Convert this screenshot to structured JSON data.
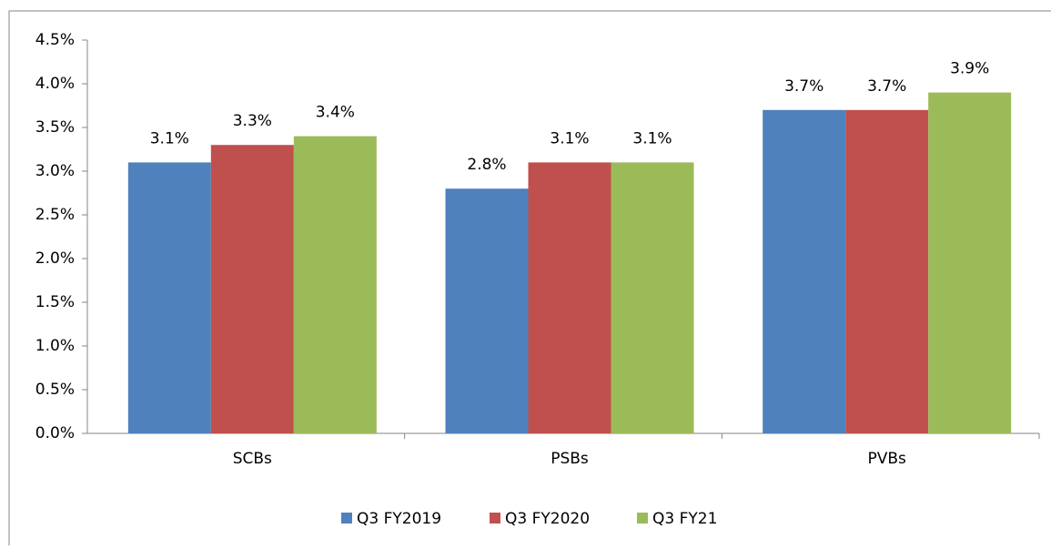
{
  "chart_data": {
    "type": "bar",
    "categories": [
      "SCBs",
      "PSBs",
      "PVBs"
    ],
    "series": [
      {
        "name": "Q3 FY2019",
        "color": "#4f81bd",
        "values": [
          3.1,
          2.8,
          3.7
        ],
        "value_labels": [
          "3.1%",
          "2.8%",
          "3.7%"
        ]
      },
      {
        "name": "Q3 FY2020",
        "color": "#c0504d",
        "values": [
          3.3,
          3.1,
          3.7
        ],
        "value_labels": [
          "3.3%",
          "3.1%",
          "3.7%"
        ]
      },
      {
        "name": "Q3 FY21",
        "color": "#9bbb59",
        "values": [
          3.4,
          3.1,
          3.9
        ],
        "value_labels": [
          "3.4%",
          "3.1%",
          "3.9%"
        ]
      }
    ],
    "ylim": [
      0,
      4.5
    ],
    "yticks": [
      {
        "value": 0,
        "label": "0.0%"
      },
      {
        "value": 0.5,
        "label": "0.5%"
      },
      {
        "value": 1,
        "label": "1.0%"
      },
      {
        "value": 1.5,
        "label": "1.5%"
      },
      {
        "value": 2,
        "label": "2.0%"
      },
      {
        "value": 2.5,
        "label": "2.5%"
      },
      {
        "value": 3,
        "label": "3.0%"
      },
      {
        "value": 3.5,
        "label": "3.5%"
      },
      {
        "value": 4,
        "label": "4.0%"
      },
      {
        "value": 4.5,
        "label": "4.5%"
      }
    ],
    "grid": false,
    "legend": "bottom"
  }
}
